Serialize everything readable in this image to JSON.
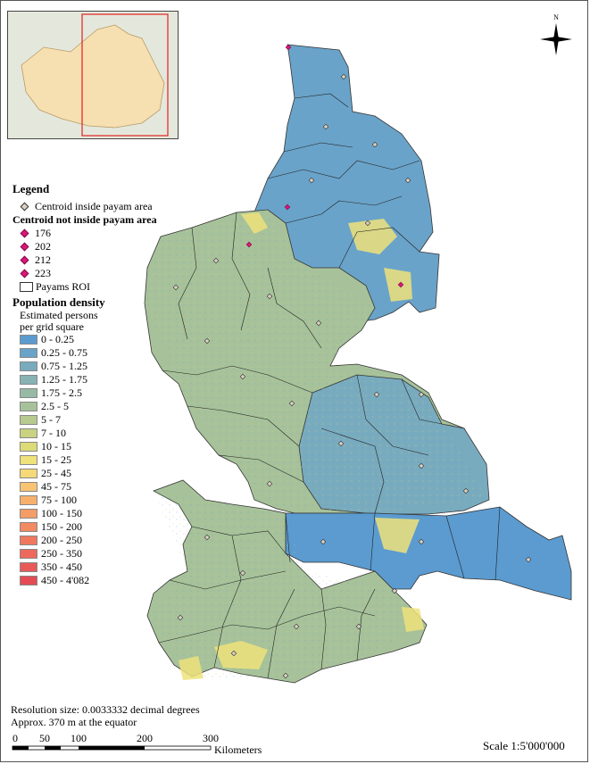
{
  "legend": {
    "title": "Legend",
    "centroid_inside": "Centroid inside payam area",
    "centroid_not_inside": "Centroid not inside payam area",
    "outside_ids": [
      "176",
      "202",
      "212",
      "223"
    ],
    "roi_label": "Payams ROI",
    "pop_title": "Population density",
    "pop_sub1": "Estimated persons",
    "pop_sub2": "per grid square",
    "classes": [
      {
        "label": "0 - 0.25",
        "color": "#5b9bd0"
      },
      {
        "label": "0.25 - 0.75",
        "color": "#6aa3c9"
      },
      {
        "label": "0.75 - 1.25",
        "color": "#79abbf"
      },
      {
        "label": "1.25 - 1.75",
        "color": "#88b2b3"
      },
      {
        "label": "1.75 - 2.5",
        "color": "#97baa6"
      },
      {
        "label": "2.5 - 5",
        "color": "#a7c29a"
      },
      {
        "label": "5 - 7",
        "color": "#b8ca8f"
      },
      {
        "label": "7 - 10",
        "color": "#cad282"
      },
      {
        "label": "10 - 15",
        "color": "#dcdb78"
      },
      {
        "label": "15 - 25",
        "color": "#eee27b"
      },
      {
        "label": "25 - 45",
        "color": "#f5d979"
      },
      {
        "label": "45 - 75",
        "color": "#f6c473"
      },
      {
        "label": "75 - 100",
        "color": "#f6b06c"
      },
      {
        "label": "100 - 150",
        "color": "#f49d66"
      },
      {
        "label": "150 - 200",
        "color": "#f28a62"
      },
      {
        "label": "200 - 250",
        "color": "#ef785e"
      },
      {
        "label": "250 - 350",
        "color": "#ec695c"
      },
      {
        "label": "350 - 450",
        "color": "#e85a5a"
      },
      {
        "label": "450 - 4'082",
        "color": "#e34c55"
      }
    ]
  },
  "north_label": "N",
  "footer": {
    "line1": "Resolution size: 0.0033332 decimal degrees",
    "line2": "Approx. 370 m at the equator"
  },
  "scalebar": {
    "ticks": [
      "0",
      "50",
      "100",
      "200",
      "300"
    ],
    "unit": "Kilometers"
  },
  "scale_text": "Scale 1:5'000'000"
}
